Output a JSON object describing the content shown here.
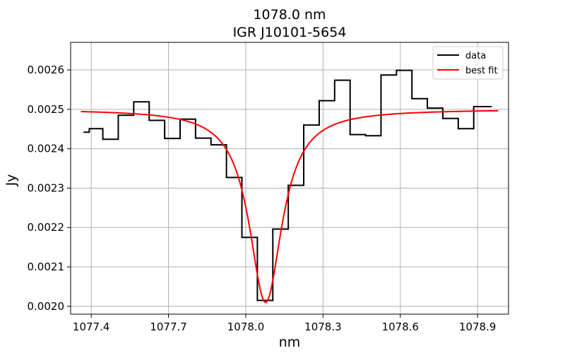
{
  "chart_data": {
    "type": "line",
    "title": "1078.0 nm",
    "subtitle": "IGR J10101-5654",
    "xlabel": "nm",
    "ylabel": "Jy",
    "xlim": [
      1077.32,
      1079.02
    ],
    "ylim": [
      0.00198,
      0.00267
    ],
    "xticks": [
      1077.4,
      1077.7,
      1078.0,
      1078.3,
      1078.6,
      1078.9
    ],
    "xtick_labels": [
      "1077.4",
      "1077.7",
      "1078.0",
      "1078.3",
      "1078.6",
      "1078.9"
    ],
    "yticks": [
      0.002,
      0.0021,
      0.0022,
      0.0023,
      0.0024,
      0.0025,
      0.0026
    ],
    "ytick_labels": [
      "0.0020",
      "0.0021",
      "0.0022",
      "0.0023",
      "0.0024",
      "0.0025",
      "0.0026"
    ],
    "grid": true,
    "legend_position": "top-right",
    "series": [
      {
        "name": "data",
        "style": "steps-mid",
        "color": "#000000",
        "x": [
          1077.37,
          1077.415,
          1077.475,
          1077.535,
          1077.595,
          1077.655,
          1077.715,
          1077.775,
          1077.835,
          1077.895,
          1077.955,
          1078.015,
          1078.075,
          1078.135,
          1078.195,
          1078.255,
          1078.315,
          1078.375,
          1078.435,
          1078.495,
          1078.555,
          1078.615,
          1078.675,
          1078.735,
          1078.795,
          1078.855,
          1078.915,
          1078.955
        ],
        "y": [
          0.002442,
          0.002451,
          0.002424,
          0.002485,
          0.002519,
          0.002472,
          0.002426,
          0.002475,
          0.002427,
          0.00241,
          0.002327,
          0.002175,
          0.002015,
          0.002196,
          0.002307,
          0.00246,
          0.002522,
          0.002574,
          0.002436,
          0.002433,
          0.002587,
          0.002599,
          0.002527,
          0.002503,
          0.002477,
          0.002451,
          0.002507,
          0.002507
        ]
      },
      {
        "name": "best fit",
        "style": "line",
        "color": "#ff0000",
        "model": {
          "kind": "lorentzian_absorption",
          "continuum": 0.0025,
          "depth": 0.00049,
          "center": 1078.077,
          "hwhm": 0.078,
          "x_range": [
            1077.36,
            1078.98
          ],
          "samples": 400
        }
      }
    ]
  }
}
